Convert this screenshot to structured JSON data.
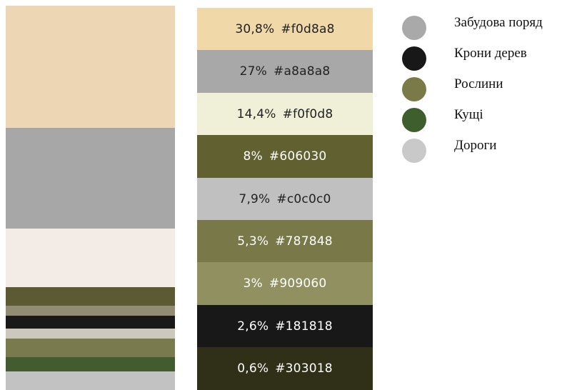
{
  "chart_data": {
    "type": "bar",
    "title": "",
    "stack_bands": [
      {
        "color": "#ecd6b3",
        "share": 31.7
      },
      {
        "color": "#a7a7a7",
        "share": 26.2
      },
      {
        "color": "#f3ece6",
        "share": 15.4
      },
      {
        "color": "#5c5a32",
        "share": 4.8
      },
      {
        "color": "#928c72",
        "share": 2.6
      },
      {
        "color": "#191919",
        "share": 3.3
      },
      {
        "color": "#ccc8bc",
        "share": 2.6
      },
      {
        "color": "#797a4d",
        "share": 4.8
      },
      {
        "color": "#425c30",
        "share": 3.7
      },
      {
        "color": "#c2c2c2",
        "share": 4.9
      }
    ],
    "palette_rows": [
      {
        "percent_label": "30,8%",
        "hex_label": "#f0d8a8",
        "value": 30.8,
        "color": "#f0d8a8",
        "text_color": "#222222"
      },
      {
        "percent_label": "27%",
        "hex_label": "#a8a8a8",
        "value": 27,
        "color": "#a8a8a8",
        "text_color": "#222222"
      },
      {
        "percent_label": "14,4%",
        "hex_label": "#f0f0d8",
        "value": 14.4,
        "color": "#f0f0d8",
        "text_color": "#222222"
      },
      {
        "percent_label": "8%",
        "hex_label": "#606030",
        "value": 8,
        "color": "#606030",
        "text_color": "#ffffff"
      },
      {
        "percent_label": "7,9%",
        "hex_label": "#c0c0c0",
        "value": 7.9,
        "color": "#c0c0c0",
        "text_color": "#222222"
      },
      {
        "percent_label": "5,3%",
        "hex_label": "#787848",
        "value": 5.3,
        "color": "#787848",
        "text_color": "#ffffff"
      },
      {
        "percent_label": "3%",
        "hex_label": "#909060",
        "value": 3,
        "color": "#909060",
        "text_color": "#ffffff"
      },
      {
        "percent_label": "2,6%",
        "hex_label": "#181818",
        "value": 2.6,
        "color": "#181818",
        "text_color": "#ffffff"
      },
      {
        "percent_label": "0,6%",
        "hex_label": "#303018",
        "value": 0.6,
        "color": "#303018",
        "text_color": "#ffffff"
      }
    ],
    "legend": [
      {
        "label": "Забудова поряд",
        "color": "#a9a9a9"
      },
      {
        "label": "Крони дерев",
        "color": "#181818"
      },
      {
        "label": "Рослини",
        "color": "#7a7a48"
      },
      {
        "label": "Кущі",
        "color": "#3f5e2e"
      },
      {
        "label": "Дороги",
        "color": "#c9c9c9"
      }
    ]
  }
}
